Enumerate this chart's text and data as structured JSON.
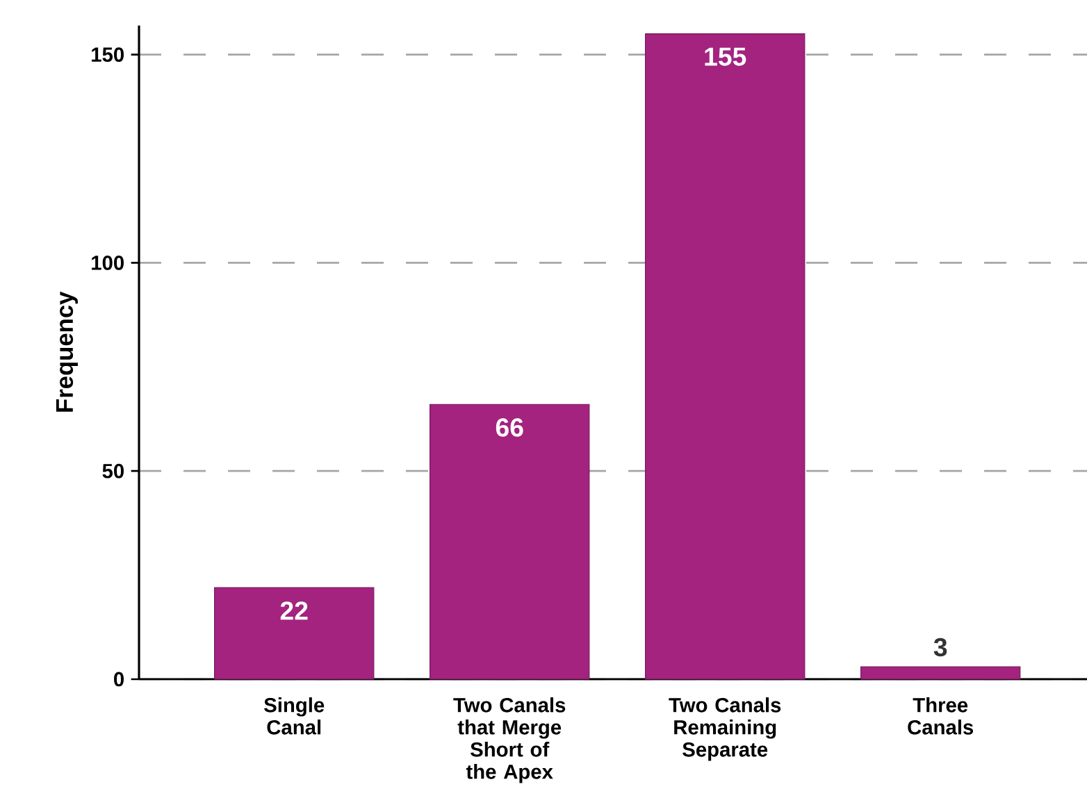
{
  "chart_data": {
    "type": "bar",
    "ylabel": "Frequency",
    "categories": [
      "Single Canal",
      "Two Canals that Merge Short of the Apex",
      "Two Canals Remaining Separate",
      "Three Canals"
    ],
    "values": [
      22,
      66,
      155,
      3
    ],
    "color": "#a3237f",
    "data_labels": true,
    "ylim": [
      0,
      157
    ],
    "yticks": [
      0,
      50,
      100,
      150
    ],
    "grid": "y"
  }
}
